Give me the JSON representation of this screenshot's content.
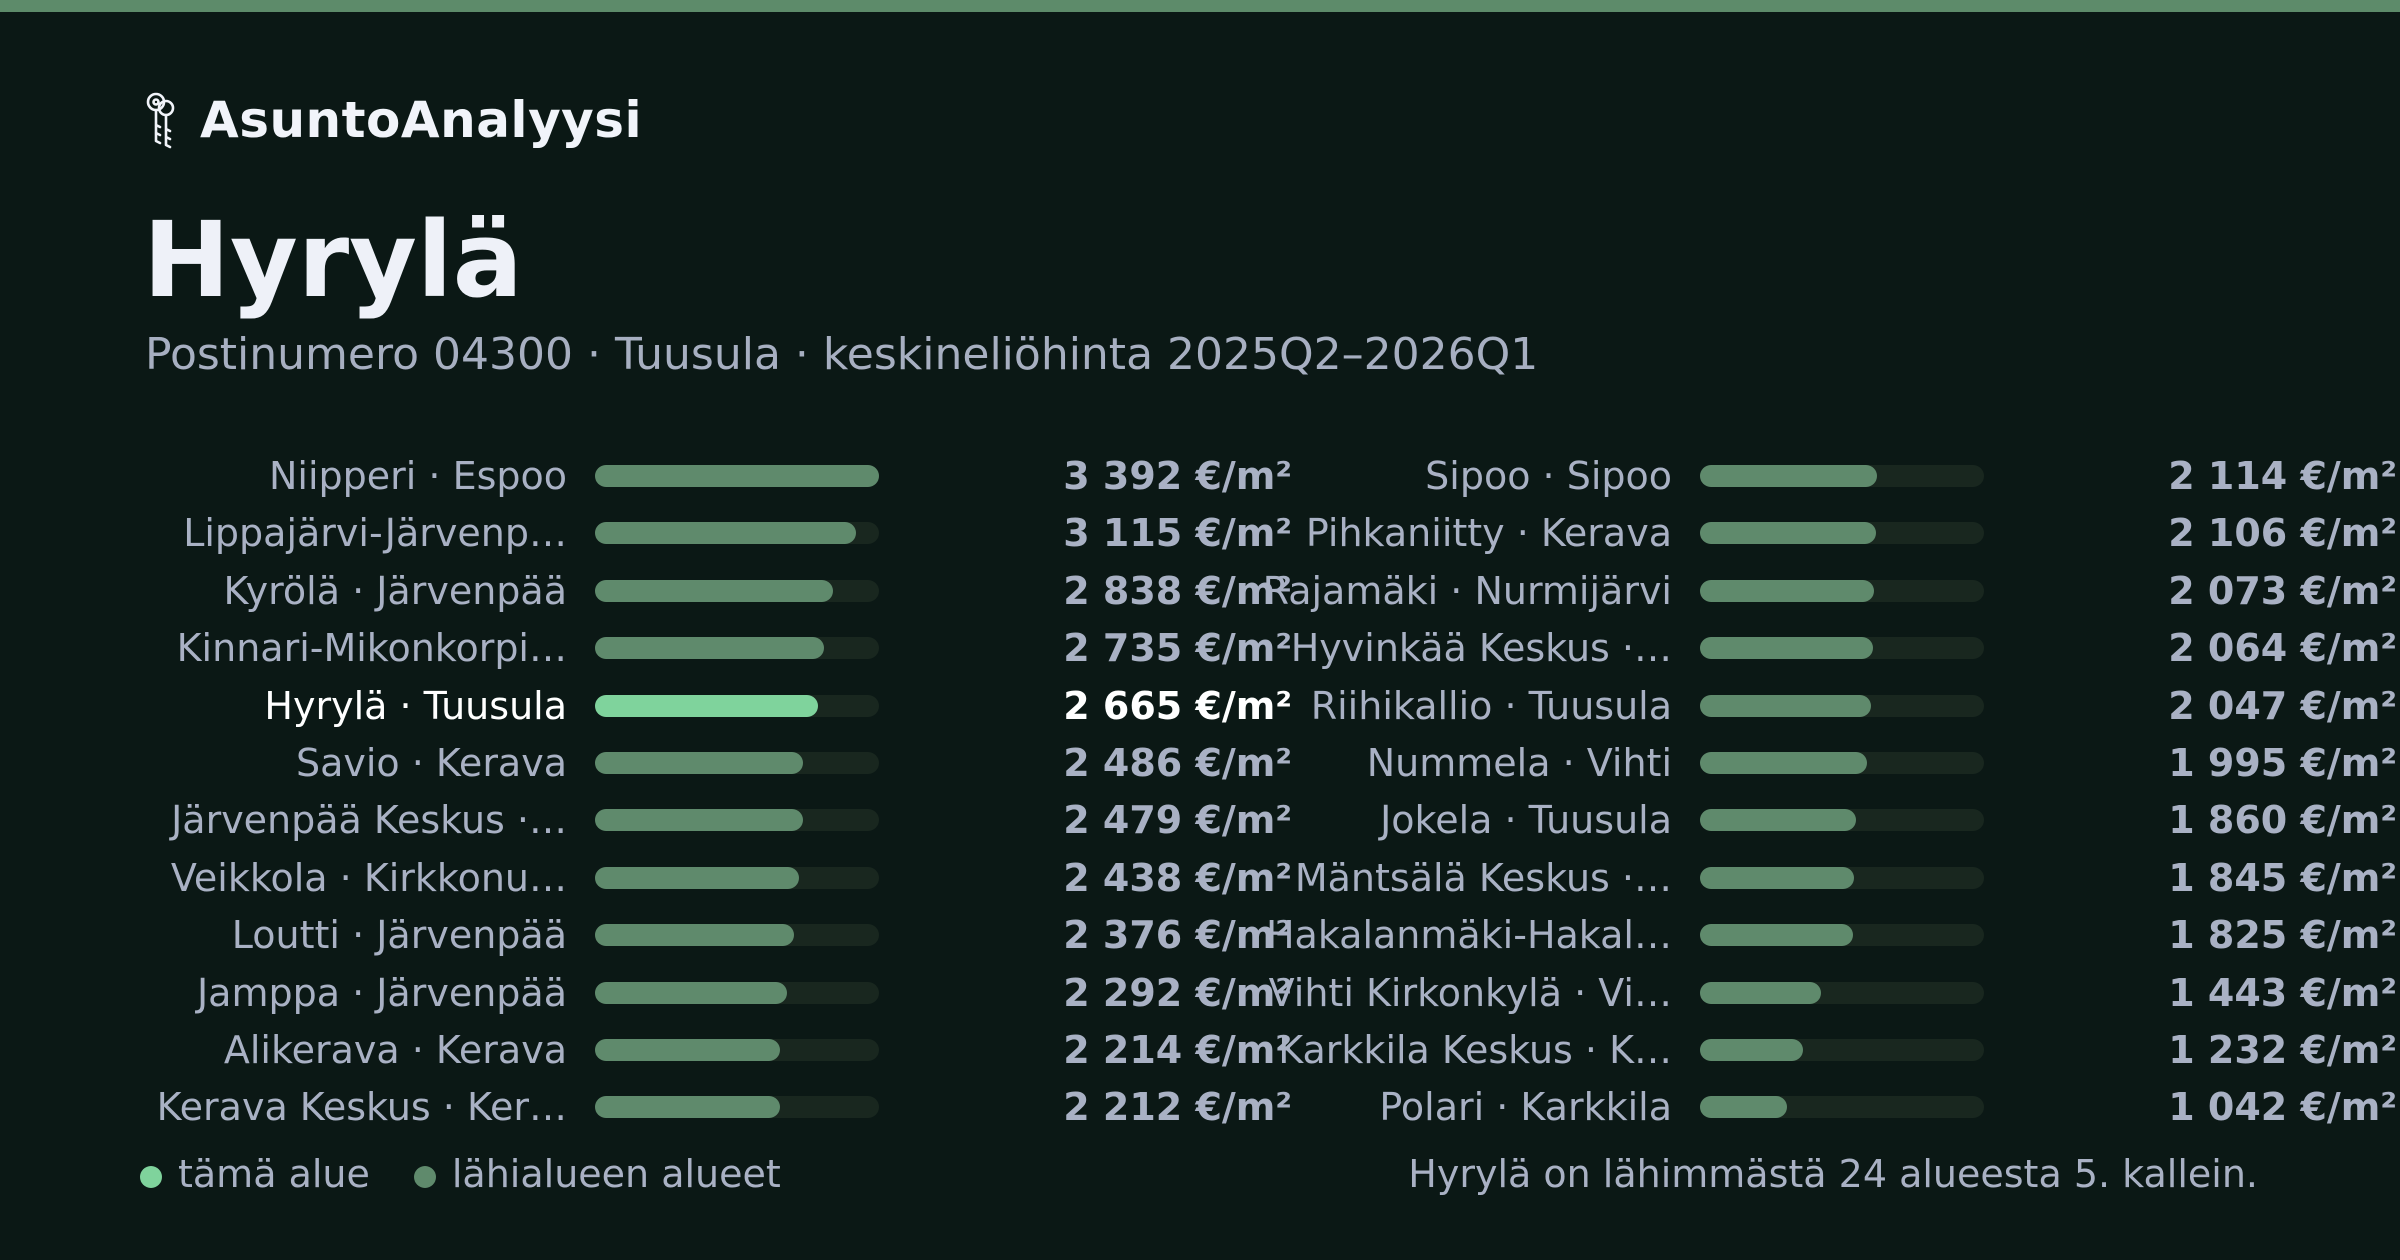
{
  "brand": {
    "name": "AsuntoAnalyysi",
    "icon": "keys-icon"
  },
  "title": "Hyrylä",
  "subtitle": "Postinumero 04300 · Tuusula · keskineliöhinta 2025Q2–2026Q1",
  "colors": {
    "background": "#0b1815",
    "accent_strip": "#5d8b6a",
    "current_bar": "#7fd39c",
    "neighbor_bar": "#5f8a6c",
    "track": "#19271f"
  },
  "chart_data": {
    "type": "bar",
    "orientation": "horizontal",
    "unit": "€/m²",
    "xlim": [
      0,
      3392
    ],
    "current_index": 4,
    "rows": [
      {
        "label": "Niipperi · Espoo",
        "value": 3392,
        "value_label": "3 392 €/m²"
      },
      {
        "label": "Lippajärvi-Järvenp…",
        "value": 3115,
        "value_label": "3 115 €/m²"
      },
      {
        "label": "Kyrölä · Järvenpää",
        "value": 2838,
        "value_label": "2 838 €/m²"
      },
      {
        "label": "Kinnari-Mikonkorpi…",
        "value": 2735,
        "value_label": "2 735 €/m²"
      },
      {
        "label": "Hyrylä · Tuusula",
        "value": 2665,
        "value_label": "2 665 €/m²"
      },
      {
        "label": "Savio · Kerava",
        "value": 2486,
        "value_label": "2 486 €/m²"
      },
      {
        "label": "Järvenpää Keskus ·…",
        "value": 2479,
        "value_label": "2 479 €/m²"
      },
      {
        "label": "Veikkola · Kirkkonu…",
        "value": 2438,
        "value_label": "2 438 €/m²"
      },
      {
        "label": "Loutti · Järvenpää",
        "value": 2376,
        "value_label": "2 376 €/m²"
      },
      {
        "label": "Jamppa · Järvenpää",
        "value": 2292,
        "value_label": "2 292 €/m²"
      },
      {
        "label": "Alikerava · Kerava",
        "value": 2214,
        "value_label": "2 214 €/m²"
      },
      {
        "label": "Kerava Keskus · Ker…",
        "value": 2212,
        "value_label": "2 212 €/m²"
      },
      {
        "label": "Sipoo · Sipoo",
        "value": 2114,
        "value_label": "2 114 €/m²"
      },
      {
        "label": "Pihkaniitty · Kerava",
        "value": 2106,
        "value_label": "2 106 €/m²"
      },
      {
        "label": "Rajamäki · Nurmijärvi",
        "value": 2073,
        "value_label": "2 073 €/m²"
      },
      {
        "label": "Hyvinkää Keskus ·…",
        "value": 2064,
        "value_label": "2 064 €/m²"
      },
      {
        "label": "Riihikallio · Tuusula",
        "value": 2047,
        "value_label": "2 047 €/m²"
      },
      {
        "label": "Nummela · Vihti",
        "value": 1995,
        "value_label": "1 995 €/m²"
      },
      {
        "label": "Jokela · Tuusula",
        "value": 1860,
        "value_label": "1 860 €/m²"
      },
      {
        "label": "Mäntsälä Keskus ·…",
        "value": 1845,
        "value_label": "1 845 €/m²"
      },
      {
        "label": "Hakalanmäki-Hakal…",
        "value": 1825,
        "value_label": "1 825 €/m²"
      },
      {
        "label": "Vihti Kirkonkylä · Vi…",
        "value": 1443,
        "value_label": "1 443 €/m²"
      },
      {
        "label": "Karkkila Keskus · K…",
        "value": 1232,
        "value_label": "1 232 €/m²"
      },
      {
        "label": "Polari · Karkkila",
        "value": 1042,
        "value_label": "1 042 €/m²"
      }
    ]
  },
  "legend": {
    "current": "tämä alue",
    "neighbors": "lähialueen alueet"
  },
  "footnote": "Hyrylä on lähimmästä 24 alueesta 5. kallein."
}
